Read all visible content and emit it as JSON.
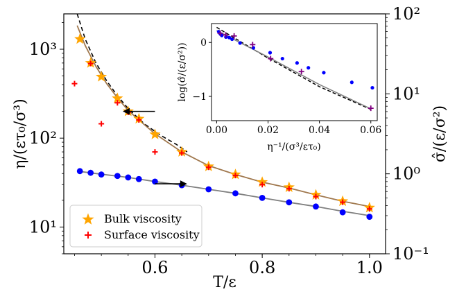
{
  "chart_data": [
    {
      "type": "scatter",
      "title": "",
      "xlabel": "T/ε",
      "ylabel_left": "η/(ετ₀/σ³)",
      "ylabel_right": "σ̂/(ε/σ²)",
      "xlim": [
        0.43,
        1.03
      ],
      "ylim_left": [
        5,
        2500
      ],
      "ylim_right": [
        0.1,
        100
      ],
      "yscale": "log",
      "x_ticks": [
        "0.6",
        "0.8",
        "1.0"
      ],
      "y_ticks_left": [
        "10¹",
        "10²",
        "10³"
      ],
      "y_ticks_right": [
        "10⁻¹",
        "10⁰",
        "10¹",
        "10²"
      ],
      "legend_position": "lower-left",
      "series": [
        {
          "name": "Bulk viscosity",
          "marker": "star",
          "color": "#FFA500",
          "axis": "left",
          "x": [
            0.46,
            0.48,
            0.5,
            0.53,
            0.55,
            0.57,
            0.6,
            0.65,
            0.7,
            0.75,
            0.8,
            0.85,
            0.9,
            0.95,
            1.0
          ],
          "y": [
            1300,
            700,
            490,
            280,
            200,
            165,
            110,
            70,
            48,
            39,
            32,
            28,
            23,
            19.5,
            16.5
          ]
        },
        {
          "name": "Surface viscosity",
          "marker": "plus",
          "color": "#FF0000",
          "axis": "left",
          "x": [
            0.45,
            0.48,
            0.5,
            0.53,
            0.55,
            0.57,
            0.6,
            0.65,
            0.7,
            0.75,
            0.8,
            0.85,
            0.9,
            0.95,
            1.0
          ],
          "y": [
            410,
            690,
            145,
            250,
            195,
            160,
            70,
            68,
            47,
            38,
            30,
            27,
            22,
            19,
            16
          ]
        },
        {
          "name": "",
          "marker": "circle",
          "color": "#0000FF",
          "axis": "right",
          "x": [
            0.46,
            0.48,
            0.5,
            0.53,
            0.55,
            0.57,
            0.6,
            0.65,
            0.7,
            0.75,
            0.8,
            0.85,
            0.9,
            0.95,
            1.0
          ],
          "y": [
            1.08,
            1.03,
            0.98,
            0.94,
            0.9,
            0.86,
            0.8,
            0.72,
            0.64,
            0.57,
            0.5,
            0.44,
            0.39,
            0.33,
            0.29
          ]
        }
      ],
      "fit_lines": [
        {
          "style": "dashed",
          "color": "#000000",
          "axis": "left",
          "x": [
            0.455,
            0.47,
            0.49,
            0.51,
            0.53,
            0.55,
            0.58,
            0.61,
            0.64,
            0.66
          ],
          "y": [
            2500,
            1300,
            700,
            440,
            300,
            215,
            145,
            108,
            85,
            70
          ]
        },
        {
          "style": "solid",
          "color": "#A0784E",
          "axis": "left",
          "x": [
            0.455,
            0.47,
            0.49,
            0.51,
            0.53,
            0.55,
            0.57,
            0.6,
            0.65,
            0.7,
            0.75,
            0.8,
            0.85,
            0.9,
            0.95,
            1.0
          ],
          "y": [
            1850,
            1100,
            640,
            410,
            285,
            205,
            160,
            112,
            70,
            49,
            39,
            32,
            27.5,
            23,
            19.5,
            17
          ]
        },
        {
          "style": "solid",
          "color": "#808080",
          "axis": "right",
          "x": [
            0.455,
            0.5,
            0.55,
            0.6,
            0.65,
            0.7,
            0.75,
            0.8,
            0.85,
            0.9,
            0.95,
            1.0
          ],
          "y": [
            1.08,
            0.99,
            0.9,
            0.8,
            0.72,
            0.64,
            0.57,
            0.5,
            0.44,
            0.39,
            0.34,
            0.3
          ]
        }
      ],
      "arrows": [
        {
          "points_to": "left-axis",
          "x": [
            0.6,
            0.54
          ],
          "y": [
            200,
            200
          ]
        },
        {
          "points_to": "right-axis",
          "x": [
            0.6,
            0.66
          ],
          "y": [
            0.75,
            0.75
          ]
        }
      ]
    },
    {
      "type": "scatter",
      "inset": true,
      "xlabel": "η⁻¹/(σ³/ετ₀)",
      "ylabel": "log(σ̂/(ε/σ²))",
      "xlim": [
        -0.002,
        0.0625
      ],
      "ylim": [
        -1.45,
        0.35
      ],
      "x_ticks": [
        "0.00",
        "0.02",
        "0.04",
        "0.06"
      ],
      "y_ticks": [
        "0",
        "−1"
      ],
      "series": [
        {
          "marker": "circle",
          "color": "#0000FF",
          "x": [
            0.0008,
            0.0014,
            0.002,
            0.0036,
            0.0049,
            0.006,
            0.0091,
            0.0143,
            0.0208,
            0.0256,
            0.0313,
            0.0357,
            0.0417,
            0.0526,
            0.0606
          ],
          "y": [
            0.2,
            0.16,
            0.13,
            0.1,
            0.09,
            0.06,
            -0.01,
            -0.1,
            -0.19,
            -0.3,
            -0.38,
            -0.47,
            -0.56,
            -0.74,
            -0.84
          ]
        },
        {
          "marker": "plus",
          "color": "#800080",
          "x": [
            0.0014,
            0.0035,
            0.0068,
            0.014,
            0.021,
            0.033,
            0.06
          ],
          "y": [
            0.17,
            0.14,
            0.12,
            -0.04,
            -0.3,
            -0.54,
            -1.22
          ]
        }
      ],
      "fit_lines": [
        {
          "style": "dashed",
          "color": "#000000",
          "x": [
            0.0,
            0.02,
            0.04,
            0.06
          ],
          "y": [
            0.28,
            -0.29,
            -0.82,
            -1.24
          ]
        },
        {
          "style": "solid",
          "color": "#808080",
          "x": [
            0.0,
            0.02,
            0.04,
            0.06
          ],
          "y": [
            0.22,
            -0.27,
            -0.78,
            -1.23
          ]
        }
      ]
    }
  ]
}
